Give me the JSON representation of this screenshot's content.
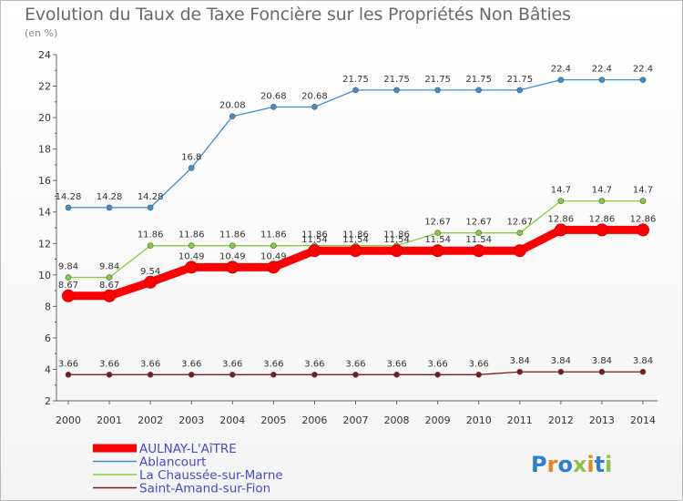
{
  "chart_data": {
    "type": "line",
    "title": "Evolution du Taux de Taxe Foncière sur les Propriétés Non Bâties",
    "subtitle": "(en %)",
    "xlabel": "",
    "ylabel": "(en %)",
    "ylim": [
      2,
      24
    ],
    "yticks": [
      2,
      4,
      6,
      8,
      10,
      12,
      14,
      16,
      18,
      20,
      22,
      24
    ],
    "categories": [
      "2000",
      "2001",
      "2002",
      "2003",
      "2004",
      "2005",
      "2006",
      "2007",
      "2008",
      "2009",
      "2010",
      "2011",
      "2012",
      "2013",
      "2014"
    ],
    "legend_position": "bottom-left",
    "series": [
      {
        "name": "AULNAY-L'AîTRE",
        "color": "#ff0000",
        "values": [
          8.67,
          8.67,
          9.54,
          10.49,
          10.49,
          10.49,
          11.54,
          11.54,
          11.54,
          11.54,
          11.54,
          11.54,
          12.86,
          12.86,
          12.86
        ],
        "labels": [
          "8.67",
          "8.67",
          "9.54",
          "10.49",
          "10.49",
          "10.49",
          "11.54",
          "11.54",
          "11.54",
          "11.54",
          "11.54",
          "",
          "12.86",
          "12.86",
          "12.86"
        ]
      },
      {
        "name": "Ablancourt",
        "color": "#3a8fd6",
        "values": [
          14.28,
          14.28,
          14.28,
          16.8,
          20.08,
          20.68,
          20.68,
          21.75,
          21.75,
          21.75,
          21.75,
          21.75,
          22.4,
          22.4,
          22.4
        ],
        "labels": [
          "14.28",
          "14.28",
          "14.28",
          "16.8",
          "20.08",
          "20.68",
          "20.68",
          "21.75",
          "21.75",
          "21.75",
          "21.75",
          "21.75",
          "22.4",
          "22.4",
          "22.4"
        ]
      },
      {
        "name": "La Chaussée-sur-Marne",
        "color": "#7fd13b",
        "values": [
          9.84,
          9.84,
          11.86,
          11.86,
          11.86,
          11.86,
          11.86,
          11.86,
          11.86,
          12.67,
          12.67,
          12.67,
          14.7,
          14.7,
          14.7
        ],
        "labels": [
          "9.84",
          "9.84",
          "11.86",
          "11.86",
          "11.86",
          "11.86",
          "11.86",
          "11.86",
          "11.86",
          "12.67",
          "12.67",
          "12.67",
          "14.7",
          "14.7",
          "14.7"
        ]
      },
      {
        "name": "Saint-Amand-sur-Fion",
        "color": "#7a1a1a",
        "values": [
          3.66,
          3.66,
          3.66,
          3.66,
          3.66,
          3.66,
          3.66,
          3.66,
          3.66,
          3.66,
          3.66,
          3.84,
          3.84,
          3.84,
          3.84
        ],
        "labels": [
          "3.66",
          "3.66",
          "3.66",
          "3.66",
          "3.66",
          "3.66",
          "3.66",
          "3.66",
          "3.66",
          "3.66",
          "3.66",
          "3.84",
          "3.84",
          "3.84",
          "3.84"
        ]
      }
    ]
  },
  "logo": {
    "text": "Proxiti"
  }
}
